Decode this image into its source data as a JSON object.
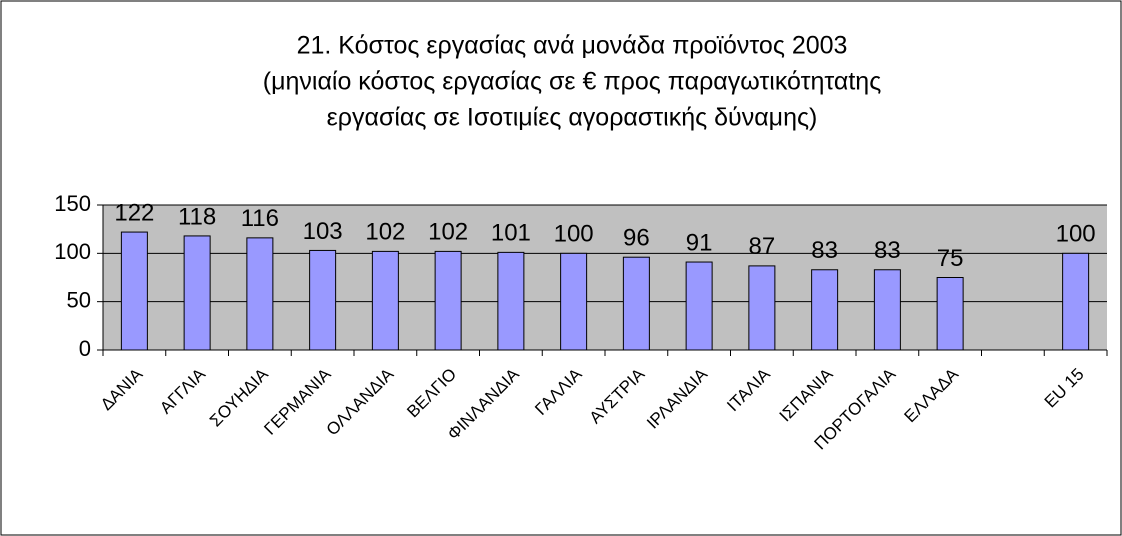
{
  "chart_data": {
    "type": "bar",
    "title": [
      "21. Κόστος εργασίας ανά μονάδα προϊόντος 2003",
      "(μηνιαίο κόστος εργασίας σε € προς παραγωτικότηταtης",
      "εργασίας σε Ισοτιμίες αγοραστικής δύναμης)"
    ],
    "categories": [
      "ΔΑΝΙΑ",
      "ΑΓΓΛΙΑ",
      "ΣΟΥΗΔΙΑ",
      "ΓΕΡΜΑΝΙΑ",
      "ΟΛΛΑΝΔΙΑ",
      "ΒΕΛΓΙΟ",
      "ΦΙΝΛΑΝΔΙΑ",
      "ΓΑΛΛΙΑ",
      "ΑΥΣΤΡΙΑ",
      "ΙΡΛΑΝΔΙΑ",
      "ΙΤΑΛΙΑ",
      "ΙΣΠΑΝΙΑ",
      "ΠΟΡΤΟΓΑΛΙΑ",
      "ΕΛΛΑΔΑ",
      null,
      "EU 15"
    ],
    "values": [
      122,
      118,
      116,
      103,
      102,
      102,
      101,
      100,
      96,
      91,
      87,
      83,
      83,
      75,
      null,
      100
    ],
    "color": "#9999ff",
    "ylim": [
      0,
      150
    ],
    "yticks": [
      0,
      50,
      100,
      150
    ],
    "grid": true
  }
}
